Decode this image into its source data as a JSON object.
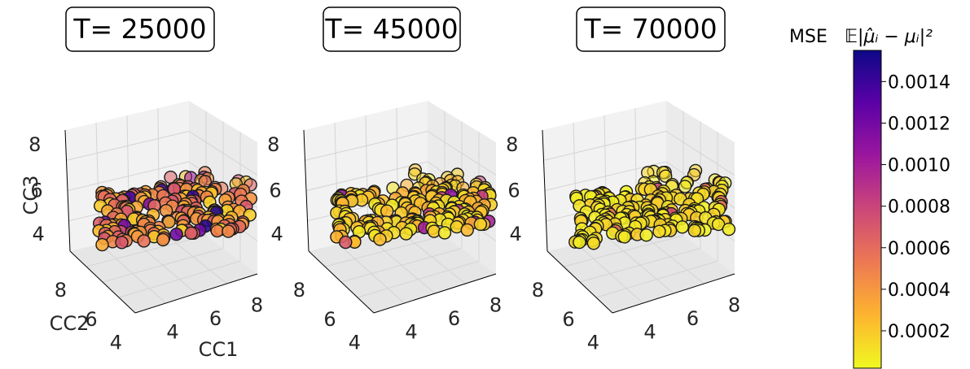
{
  "chart_data": {
    "type": "scatter",
    "projection": "3d",
    "colormap": "plasma_r",
    "marker_edgecolor": "#1a1a1a",
    "panels": [
      {
        "title": "T= 25000",
        "xlabel": "CC1",
        "ylabel": "CC2",
        "zlabel": "CC3",
        "xticks": [
          "4",
          "6",
          "8"
        ],
        "yticks": [
          "4",
          "6",
          "8"
        ],
        "zticks": [
          "4",
          "6",
          "8"
        ],
        "xlim": [
          3,
          9
        ],
        "ylim": [
          3,
          9
        ],
        "zlim": [
          3,
          8.5
        ],
        "mse_range": [
          0.0001,
          0.00155
        ],
        "mse_typical": 0.00045
      },
      {
        "title": "T= 45000",
        "xlabel": "",
        "ylabel": "",
        "zlabel": "",
        "xticks": [
          "4",
          "6",
          "8"
        ],
        "yticks": [
          "4",
          "6",
          "8"
        ],
        "zticks": [
          "4",
          "6",
          "8"
        ],
        "xlim": [
          3,
          9
        ],
        "ylim": [
          3,
          9
        ],
        "zlim": [
          3,
          8.5
        ],
        "mse_range": [
          5e-05,
          0.0011
        ],
        "mse_typical": 0.0002
      },
      {
        "title": "T= 70000",
        "xlabel": "",
        "ylabel": "",
        "zlabel": "",
        "xticks": [
          "4",
          "6",
          "8"
        ],
        "yticks": [
          "4",
          "6",
          "8"
        ],
        "zticks": [
          "4",
          "6",
          "8"
        ],
        "xlim": [
          3,
          9
        ],
        "ylim": [
          3,
          9
        ],
        "zlim": [
          3,
          8.5
        ],
        "mse_range": [
          3e-05,
          0.0008
        ],
        "mse_typical": 0.00012
      }
    ],
    "colorbar": {
      "label_prefix": "MSE",
      "label_math": "𝔼|μ̂ᵢ − μᵢ|²",
      "vmin": 2e-05,
      "vmax": 0.00155,
      "ticks": [
        0.0002,
        0.0004,
        0.0006,
        0.0008,
        0.001,
        0.0012,
        0.0014
      ],
      "tick_labels": [
        "0.0002",
        "0.0004",
        "0.0006",
        "0.0008",
        "0.0010",
        "0.0012",
        "0.0014"
      ],
      "colors": [
        "#f0f921",
        "#fdb42f",
        "#ed7953",
        "#cc4778",
        "#9c179e",
        "#5c01a6",
        "#0d0887"
      ]
    }
  }
}
